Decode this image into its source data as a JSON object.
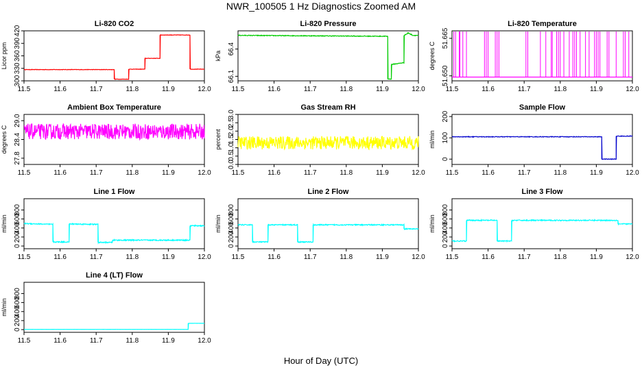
{
  "figure": {
    "title": "NWR_100505  1 Hz Diagnostics Zoomed AM",
    "xlabel": "Hour of Day (UTC)"
  },
  "chart_data": [
    {
      "type": "line",
      "title": "Li-820 CO2",
      "ylabel": "Licor ppm",
      "color": "#ff0000",
      "xlim": [
        11.5,
        12.0
      ],
      "ylim": [
        300,
        420
      ],
      "xticks": [
        11.5,
        11.6,
        11.7,
        11.8,
        11.9,
        12.0
      ],
      "xticklabels": [
        "11.5",
        "11.6",
        "11.7",
        "11.8",
        "11.9",
        "12.0"
      ],
      "yticks": [
        300,
        330,
        360,
        390,
        420
      ],
      "yticklabels": [
        "300",
        "330",
        "360",
        "390",
        "420"
      ],
      "series": [
        {
          "x": [
            11.5,
            11.75,
            11.75,
            11.79,
            11.79,
            11.835,
            11.835,
            11.877,
            11.877,
            11.96,
            11.96,
            12.0
          ],
          "y": [
            327,
            327,
            304,
            304,
            328,
            328,
            354,
            354,
            410,
            410,
            328,
            328
          ]
        }
      ],
      "noise": 0.5
    },
    {
      "type": "line",
      "title": "Li-820 Pressure",
      "ylabel": "kPa",
      "color": "#00cc00",
      "xlim": [
        11.5,
        12.0
      ],
      "ylim": [
        66.05,
        66.6
      ],
      "xticks": [
        11.5,
        11.6,
        11.7,
        11.8,
        11.9,
        12.0
      ],
      "xticklabels": [
        "11.5",
        "11.6",
        "11.7",
        "11.8",
        "11.9",
        "12.0"
      ],
      "yticks": [
        66.1,
        66.4
      ],
      "yticklabels": [
        "66.1",
        "66.4"
      ],
      "series": [
        {
          "x": [
            11.5,
            11.915,
            11.915,
            11.925,
            11.925,
            11.96,
            11.96,
            11.97,
            11.97,
            11.985,
            12.0
          ],
          "y": [
            66.55,
            66.54,
            66.07,
            66.07,
            66.23,
            66.25,
            66.55,
            66.57,
            66.58,
            66.55,
            66.55
          ]
        }
      ],
      "noise": 0.004
    },
    {
      "type": "line",
      "title": "Li-820 Temperature",
      "ylabel": "degrees C",
      "color": "#ff00ff",
      "xlim": [
        11.5,
        12.0
      ],
      "ylim": [
        51.648,
        51.668
      ],
      "xticks": [
        11.5,
        11.6,
        11.7,
        11.8,
        11.9,
        12.0
      ],
      "xticklabels": [
        "11.5",
        "11.6",
        "11.7",
        "11.8",
        "11.9",
        "12.0"
      ],
      "yticks": [
        51.65,
        51.665
      ],
      "yticklabels": [
        "51.650",
        "51.665"
      ],
      "series": [
        {
          "x": [
            11.5,
            12.0
          ],
          "y": [
            51.6495,
            51.6495
          ]
        }
      ],
      "spikes": {
        "x": [
          11.505,
          11.51,
          11.52,
          11.522,
          11.53,
          11.54,
          11.59,
          11.595,
          11.6,
          11.62,
          11.625,
          11.63,
          11.705,
          11.71,
          11.745,
          11.76,
          11.775,
          11.778,
          11.79,
          11.795,
          11.8,
          11.81,
          11.825,
          11.835,
          11.84,
          11.845,
          11.855,
          11.87,
          11.88,
          11.895,
          11.9,
          11.905,
          11.91,
          11.93,
          11.935,
          11.955,
          11.975,
          11.98,
          11.99
        ],
        "y": 51.668
      },
      "noise": 0
    },
    {
      "type": "line",
      "title": "Ambient Box Temperature",
      "ylabel": "degrees C",
      "color": "#ff00ff",
      "xlim": [
        11.5,
        12.0
      ],
      "ylim": [
        27.6,
        29.2
      ],
      "xticks": [
        11.5,
        11.6,
        11.7,
        11.8,
        11.9,
        12.0
      ],
      "xticklabels": [
        "11.5",
        "11.6",
        "11.7",
        "11.8",
        "11.9",
        "12.0"
      ],
      "yticks": [
        27.8,
        28.4,
        29.0
      ],
      "yticklabels": [
        "27.8",
        "28.4",
        "29.0"
      ],
      "series": [
        {
          "x": [
            11.5,
            12.0
          ],
          "y": [
            28.65,
            28.65
          ]
        }
      ],
      "noise": 0.25
    },
    {
      "type": "line",
      "title": "Gas Stream RH",
      "ylabel": "percent",
      "color": "#ffff00",
      "xlim": [
        11.5,
        12.0
      ],
      "ylim": [
        0,
        3.0
      ],
      "xticks": [
        11.5,
        11.6,
        11.7,
        11.8,
        11.9,
        12.0
      ],
      "xticklabels": [
        "11.5",
        "11.6",
        "11.7",
        "11.8",
        "11.9",
        "12.0"
      ],
      "yticks": [
        0,
        0.5,
        1.0,
        1.5,
        2.0,
        2.5,
        3.0
      ],
      "yticklabels": [
        "0.0",
        "0.5",
        "1.0",
        "1.5",
        "2.0",
        "2.5",
        "3.0"
      ],
      "series": [
        {
          "x": [
            11.5,
            12.0
          ],
          "y": [
            1.3,
            1.3
          ]
        }
      ],
      "noise": 0.4
    },
    {
      "type": "line",
      "title": "Sample Flow",
      "ylabel": "ml/min",
      "color": "#0000cc",
      "xlim": [
        11.5,
        12.0
      ],
      "ylim": [
        -25,
        210
      ],
      "xticks": [
        11.5,
        11.6,
        11.7,
        11.8,
        11.9,
        12.0
      ],
      "xticklabels": [
        "11.5",
        "11.6",
        "11.7",
        "11.8",
        "11.9",
        "12.0"
      ],
      "yticks": [
        0,
        100,
        200
      ],
      "yticklabels": [
        "0",
        "100",
        "200"
      ],
      "series": [
        {
          "x": [
            11.5,
            11.915,
            11.915,
            11.955,
            11.955,
            12.0
          ],
          "y": [
            105,
            105,
            0,
            0,
            108,
            108
          ]
        }
      ],
      "noise": 1.5
    },
    {
      "type": "line",
      "title": "Line 1 Flow",
      "ylabel": "ml/min",
      "color": "#00ffff",
      "xlim": [
        11.5,
        12.0
      ],
      "ylim": [
        -60,
        1050
      ],
      "xticks": [
        11.5,
        11.6,
        11.7,
        11.8,
        11.9,
        12.0
      ],
      "xticklabels": [
        "11.5",
        "11.6",
        "11.7",
        "11.8",
        "11.9",
        "12.0"
      ],
      "yticks": [
        0,
        200,
        400,
        600,
        800
      ],
      "yticklabels": [
        "0",
        "200",
        "400",
        "600",
        "800"
      ],
      "series": [
        {
          "x": [
            11.5,
            11.58,
            11.58,
            11.625,
            11.625,
            11.705,
            11.705,
            11.745,
            11.745,
            11.96,
            11.96,
            12.0
          ],
          "y": [
            500,
            480,
            90,
            90,
            490,
            480,
            80,
            80,
            130,
            130,
            450,
            450
          ]
        }
      ],
      "noise": 12
    },
    {
      "type": "line",
      "title": "Line 2 Flow",
      "ylabel": "ml/min",
      "color": "#00ffff",
      "xlim": [
        11.5,
        12.0
      ],
      "ylim": [
        -60,
        1050
      ],
      "xticks": [
        11.5,
        11.6,
        11.7,
        11.8,
        11.9,
        12.0
      ],
      "xticklabels": [
        "11.5",
        "11.6",
        "11.7",
        "11.8",
        "11.9",
        "12.0"
      ],
      "yticks": [
        0,
        200,
        400,
        600,
        800
      ],
      "yticklabels": [
        "0",
        "200",
        "400",
        "600",
        "800"
      ],
      "series": [
        {
          "x": [
            11.5,
            11.54,
            11.54,
            11.583,
            11.583,
            11.665,
            11.665,
            11.708,
            11.708,
            11.96,
            11.96,
            12.0
          ],
          "y": [
            470,
            470,
            90,
            90,
            470,
            470,
            90,
            90,
            470,
            470,
            380,
            380
          ]
        }
      ],
      "noise": 12
    },
    {
      "type": "line",
      "title": "Line 3 Flow",
      "ylabel": "ml/min",
      "color": "#00ffff",
      "xlim": [
        11.5,
        12.0
      ],
      "ylim": [
        -60,
        1050
      ],
      "xticks": [
        11.5,
        11.6,
        11.7,
        11.8,
        11.9,
        12.0
      ],
      "xticklabels": [
        "11.5",
        "11.6",
        "11.7",
        "11.8",
        "11.9",
        "12.0"
      ],
      "yticks": [
        0,
        200,
        400,
        600,
        800
      ],
      "yticklabels": [
        "0",
        "200",
        "400",
        "600",
        "800"
      ],
      "series": [
        {
          "x": [
            11.5,
            11.54,
            11.54,
            11.625,
            11.625,
            11.665,
            11.665,
            11.96,
            11.96,
            12.0
          ],
          "y": [
            110,
            110,
            570,
            570,
            110,
            110,
            570,
            570,
            490,
            490
          ]
        }
      ],
      "noise": 12
    },
    {
      "type": "line",
      "title": "Line 4 (LT) Flow",
      "ylabel": "ml/min",
      "color": "#00ffff",
      "xlim": [
        11.5,
        12.0
      ],
      "ylim": [
        -60,
        1050
      ],
      "xticks": [
        11.5,
        11.6,
        11.7,
        11.8,
        11.9,
        12.0
      ],
      "xticklabels": [
        "11.5",
        "11.6",
        "11.7",
        "11.8",
        "11.9",
        "12.0"
      ],
      "yticks": [
        0,
        200,
        400,
        600,
        800
      ],
      "yticklabels": [
        "0",
        "200",
        "400",
        "600",
        "800"
      ],
      "series": [
        {
          "x": [
            11.5,
            11.955,
            11.955,
            12.0
          ],
          "y": [
            5,
            5,
            140,
            140
          ]
        }
      ],
      "noise": 1
    }
  ]
}
